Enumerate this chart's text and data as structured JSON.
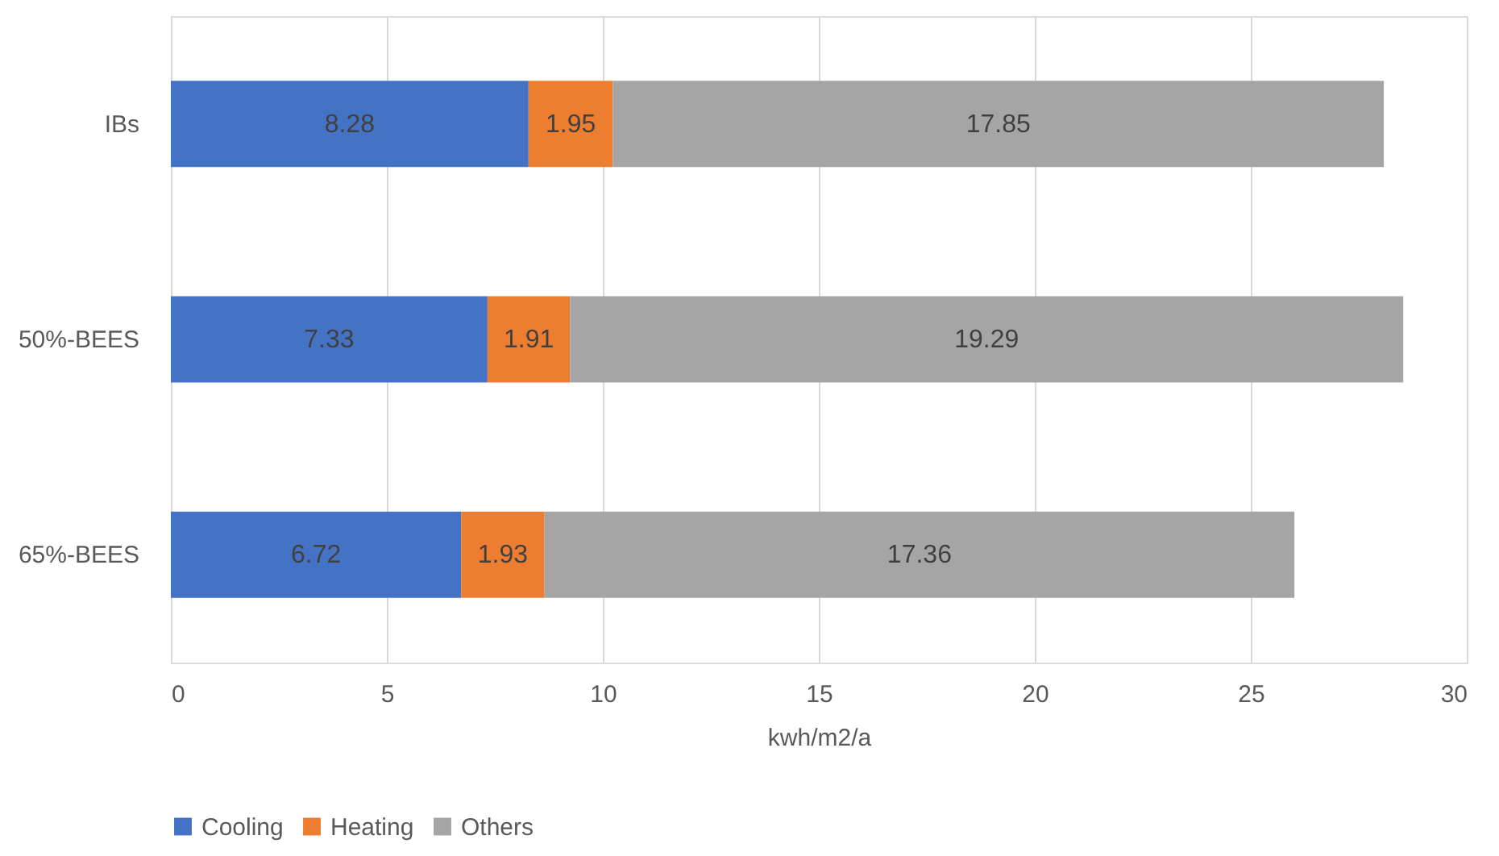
{
  "chart_data": {
    "type": "bar",
    "orientation": "horizontal",
    "stacked": true,
    "xlabel": "kwh/m2/a",
    "categories": [
      "IBs",
      "50%-BEES",
      "65%-BEES"
    ],
    "series": [
      {
        "name": "Cooling",
        "color": "#4472c4",
        "values": [
          8.28,
          7.33,
          6.72
        ]
      },
      {
        "name": "Heating",
        "color": "#ed7d31",
        "values": [
          1.95,
          1.91,
          1.93
        ]
      },
      {
        "name": "Others",
        "color": "#a5a5a5",
        "values": [
          17.85,
          19.29,
          17.36
        ]
      }
    ],
    "xlim": [
      0,
      30
    ],
    "xticks": [
      0,
      5,
      10,
      15,
      20,
      25,
      30
    ],
    "grid": "x",
    "legend": "bottom",
    "data_labels": true
  }
}
